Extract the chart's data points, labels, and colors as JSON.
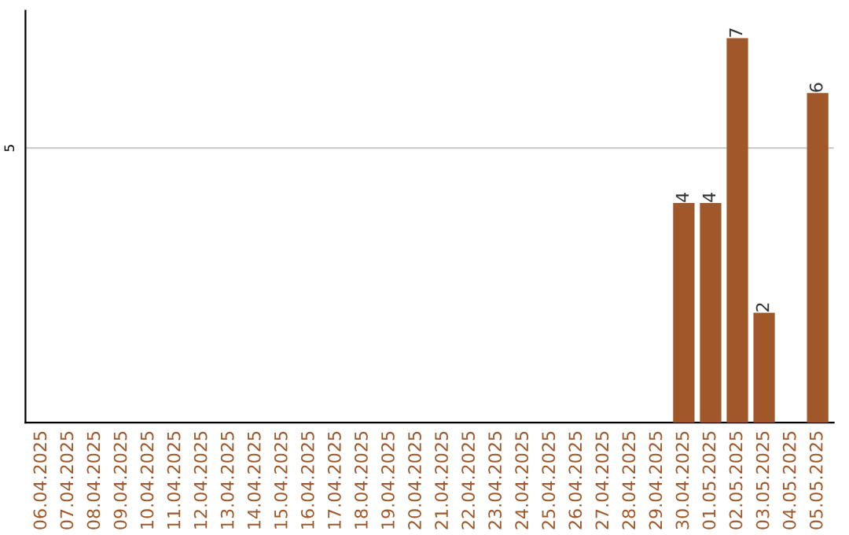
{
  "chart_data": {
    "type": "bar",
    "categories": [
      "06.04.2025",
      "07.04.2025",
      "08.04.2025",
      "09.04.2025",
      "10.04.2025",
      "11.04.2025",
      "12.04.2025",
      "13.04.2025",
      "14.04.2025",
      "15.04.2025",
      "16.04.2025",
      "17.04.2025",
      "18.04.2025",
      "19.04.2025",
      "20.04.2025",
      "21.04.2025",
      "22.04.2025",
      "23.04.2025",
      "24.04.2025",
      "25.04.2025",
      "26.04.2025",
      "27.04.2025",
      "28.04.2025",
      "29.04.2025",
      "30.04.2025",
      "01.05.2025",
      "02.05.2025",
      "03.05.2025",
      "04.05.2025",
      "05.05.2025"
    ],
    "values": [
      null,
      null,
      null,
      null,
      null,
      null,
      null,
      null,
      null,
      null,
      null,
      null,
      null,
      null,
      null,
      null,
      null,
      null,
      null,
      null,
      null,
      null,
      null,
      null,
      4,
      4,
      7,
      2,
      null,
      6
    ],
    "data_labels": true,
    "color": "#a0582a",
    "ylim": [
      0,
      7.5
    ],
    "ref_lines": [
      {
        "axis": "y",
        "value": 5,
        "label": "5",
        "color": "#cccccc"
      }
    ],
    "legend": false
  }
}
